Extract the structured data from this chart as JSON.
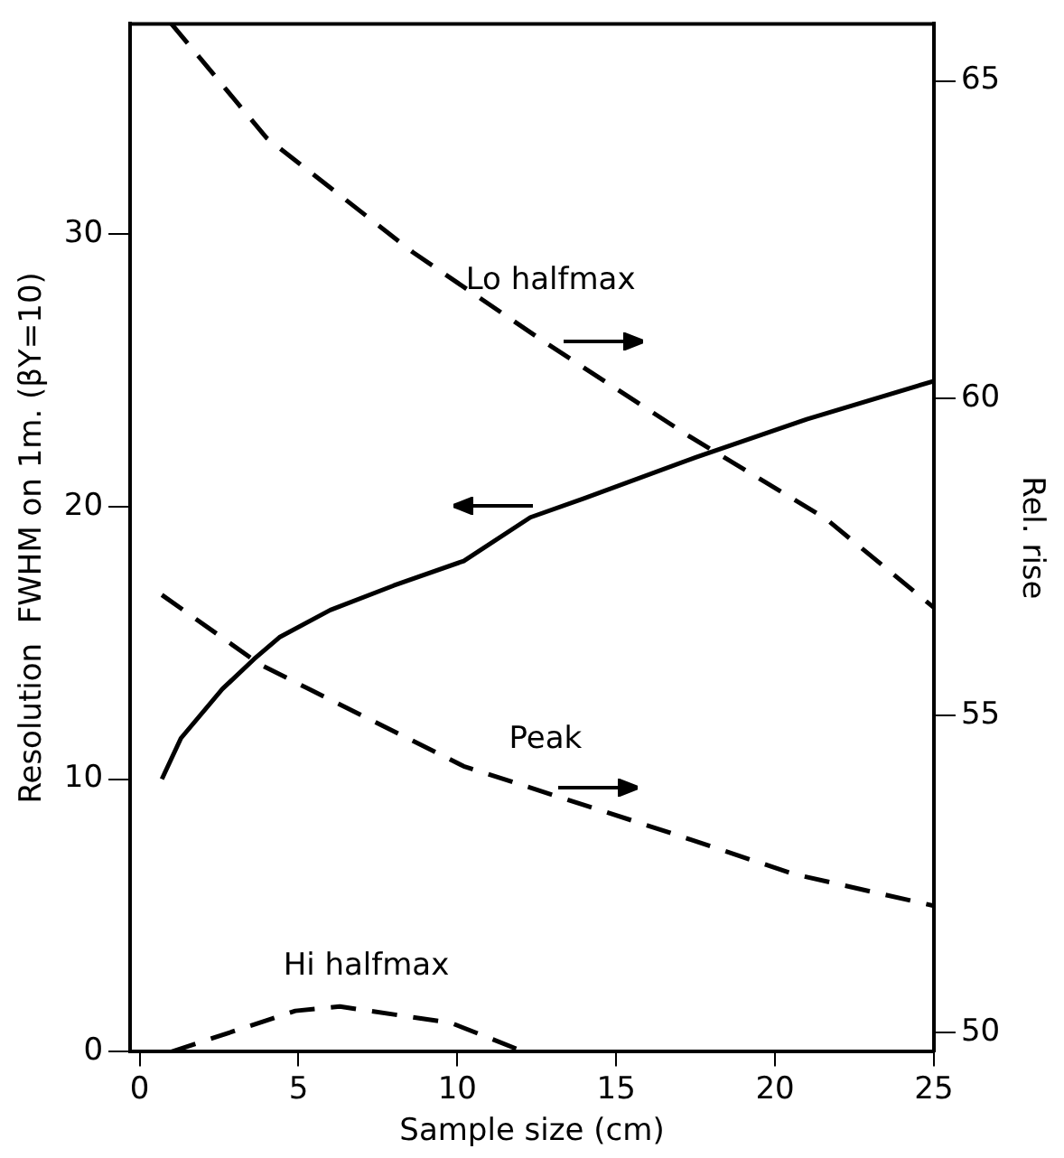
{
  "chart_data": {
    "type": "line",
    "xlabel": "Sample size (cm)",
    "ylabel": "Resolution  FWHM on 1m. (βY=10)",
    "y2label": "Rel. rise",
    "xlim": [
      -0.3,
      25
    ],
    "xticks": [
      0,
      5,
      10,
      15,
      20,
      25
    ],
    "ylim": [
      0,
      37.7
    ],
    "yticks": [
      0,
      10,
      20,
      30
    ],
    "y2lim": [
      49.7,
      65.9
    ],
    "y2ticks": [
      50,
      55,
      60,
      65
    ],
    "grid": false,
    "legend": false,
    "marker": "none",
    "series": [
      {
        "color": "#000000",
        "line_style": "solid",
        "x": [
          0.7,
          1.3,
          2.6,
          3.6,
          4.4,
          6,
          8,
          10.2,
          12.3,
          14,
          17.5,
          21,
          25
        ],
        "values": [
          10,
          11.5,
          13.3,
          14.4,
          15.2,
          16.2,
          17.1,
          18.0,
          19.6,
          20.3,
          21.8,
          23.2,
          24.6
        ]
      },
      {
        "name": "Lo halfmax",
        "color": "#000000",
        "line_style": "dashed",
        "axis": "y2",
        "x": [
          1.0,
          4.0,
          8.6,
          12.7,
          17.3,
          21.6,
          25
        ],
        "values": [
          65.9,
          64.1,
          62.3,
          60.9,
          59.4,
          58.1,
          56.7
        ]
      },
      {
        "name": "Peak",
        "color": "#000000",
        "line_style": "dashed",
        "axis": "y2",
        "x": [
          0.7,
          3.8,
          10.2,
          16.4,
          20.6,
          25
        ],
        "values": [
          56.9,
          55.8,
          54.2,
          53.2,
          52.5,
          52.0
        ]
      },
      {
        "name": "Hi halfmax",
        "color": "#000000",
        "line_style": "dashed",
        "x": [
          1.0,
          4.9,
          6.3,
          9.8,
          12.1
        ],
        "values": [
          0,
          1.5,
          1.66,
          1.06,
          0
        ]
      }
    ]
  }
}
